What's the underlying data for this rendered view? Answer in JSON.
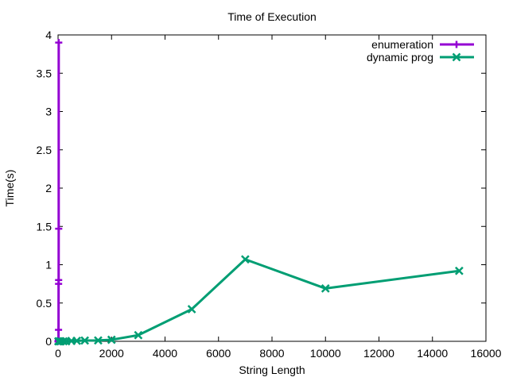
{
  "chart_data": {
    "type": "line",
    "title": "Time of Execution",
    "xlabel": "String Length",
    "ylabel": "Time(s)",
    "xlim": [
      0,
      16000
    ],
    "ylim": [
      0,
      4
    ],
    "xticks": [
      "0",
      "2000",
      "4000",
      "6000",
      "8000",
      "10000",
      "12000",
      "14000",
      "16000"
    ],
    "yticks": [
      "0",
      "0.5",
      "1",
      "1.5",
      "2",
      "2.5",
      "3",
      "3.5",
      "4"
    ],
    "grid": false,
    "legend_position": "top-right",
    "series": [
      {
        "name": "enumeration",
        "color": "#9400d3",
        "marker": "plus",
        "x": [
          1,
          2,
          3,
          4,
          5,
          6,
          7,
          8,
          10,
          12,
          14,
          16,
          18,
          20,
          22,
          24
        ],
        "y": [
          0,
          0,
          0,
          0,
          0,
          0,
          0,
          0,
          0.001,
          0.003,
          0.01,
          0.03,
          0.15,
          0.75,
          0.8,
          1.47
        ]
      },
      {
        "name": "dynamic prog",
        "color": "#009e73",
        "marker": "cross",
        "x": [
          10,
          50,
          100,
          200,
          300,
          500,
          700,
          1000,
          1500,
          2000,
          3000,
          5000,
          7000,
          10000,
          15000
        ],
        "y": [
          0,
          0,
          0,
          0,
          0,
          0.005,
          0.007,
          0.01,
          0.012,
          0.02,
          0.08,
          0.42,
          1.07,
          0.69,
          0.92
        ]
      }
    ],
    "annotations": [
      {
        "series": "enumeration",
        "x": 25,
        "y": 3.9,
        "note": "top point of enumeration series"
      }
    ]
  }
}
